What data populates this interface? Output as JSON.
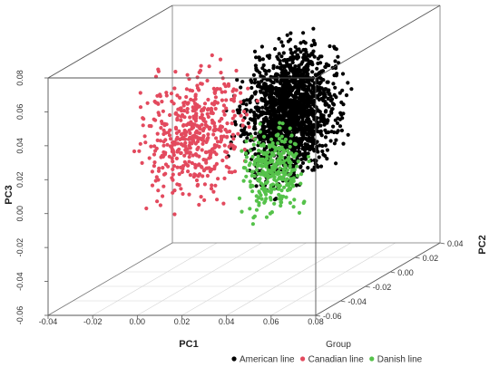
{
  "chart_data": {
    "type": "scatter",
    "projection": "3d",
    "axes": {
      "x": {
        "label": "PC1",
        "range": [
          -0.04,
          0.08
        ],
        "ticks": [
          "-0.04",
          "-0.02",
          "0.00",
          "0.02",
          "0.04",
          "0.06",
          "0.08"
        ]
      },
      "y": {
        "label": "PC2",
        "range": [
          -0.06,
          0.04
        ],
        "ticks": [
          "-0.06",
          "-0.04",
          "-0.02",
          "0.00",
          "0.02",
          "0.04"
        ]
      },
      "z": {
        "label": "PC3",
        "range": [
          -0.06,
          0.08
        ],
        "ticks": [
          "-0.06",
          "-0.04",
          "-0.02",
          "0.00",
          "0.02",
          "0.04",
          "0.06",
          "0.08"
        ]
      }
    },
    "grid": true,
    "legend": {
      "title": "Group",
      "position": "bottom"
    },
    "series": [
      {
        "name": "American line",
        "color": "#000000",
        "count": 1700,
        "pc1_range": [
          0.015,
          0.045
        ],
        "pc2_range": [
          -0.02,
          0.04
        ],
        "pc3_range": [
          -0.01,
          0.07
        ]
      },
      {
        "name": "Canadian line",
        "color": "#e34a5e",
        "count": 500,
        "pc1_range": [
          -0.03,
          0.01
        ],
        "pc2_range": [
          -0.02,
          0.03
        ],
        "pc3_range": [
          -0.02,
          0.06
        ]
      },
      {
        "name": "Danish line",
        "color": "#55c24a",
        "count": 300,
        "pc1_range": [
          0.04,
          0.065
        ],
        "pc2_range": [
          -0.06,
          -0.03
        ],
        "pc3_range": [
          -0.01,
          0.05
        ]
      }
    ]
  }
}
